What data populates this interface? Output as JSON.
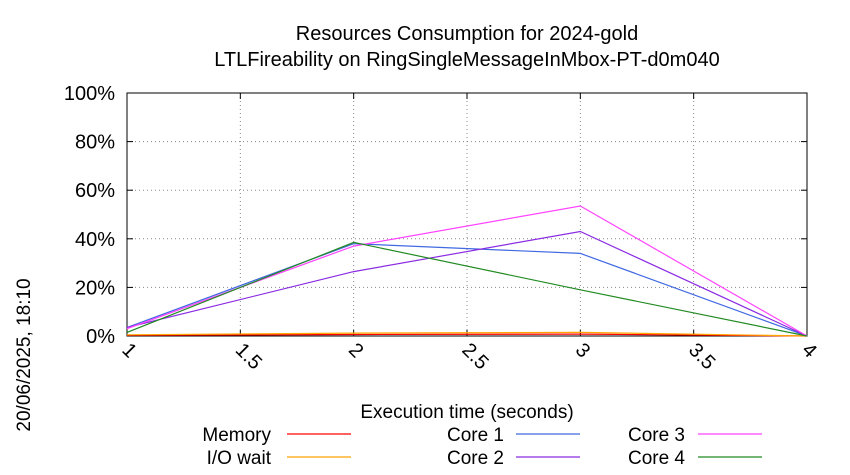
{
  "chart_data": {
    "type": "line",
    "title": "Resources Consumption for 2024-gold",
    "subtitle": "LTLFireability on RingSingleMessageInMbox-PT-d0m040",
    "xlabel": "Execution time (seconds)",
    "ylabel": "",
    "side_label": "20/06/2025, 18:10",
    "xlim": [
      1,
      4
    ],
    "ylim": [
      0,
      100
    ],
    "x_ticks": [
      1,
      1.5,
      2,
      2.5,
      3,
      3.5,
      4
    ],
    "x_tick_labels": [
      "1",
      "1.5",
      "2",
      "2.5",
      "3",
      "3.5",
      "4"
    ],
    "y_ticks": [
      0,
      20,
      40,
      60,
      80,
      100
    ],
    "y_tick_labels": [
      "0%",
      "20%",
      "40%",
      "60%",
      "80%",
      "100%"
    ],
    "grid": true,
    "legend_position": "bottom",
    "x": [
      1,
      2,
      3,
      4
    ],
    "series": [
      {
        "name": "Memory",
        "color": "#ff0000",
        "values": [
          0.3,
          0.6,
          0.8,
          0
        ]
      },
      {
        "name": "I/O wait",
        "color": "#ffa500",
        "values": [
          0.5,
          1.2,
          1.5,
          0
        ]
      },
      {
        "name": "Core 1",
        "color": "#4169e1",
        "values": [
          3.5,
          38,
          34,
          0
        ]
      },
      {
        "name": "Core 2",
        "color": "#8a2be2",
        "values": [
          3.5,
          26.5,
          43,
          0
        ]
      },
      {
        "name": "Core 3",
        "color": "#ff44ff",
        "values": [
          3,
          37,
          53.5,
          0
        ]
      },
      {
        "name": "Core 4",
        "color": "#228b22",
        "values": [
          1.5,
          38.5,
          19,
          0
        ]
      }
    ]
  }
}
